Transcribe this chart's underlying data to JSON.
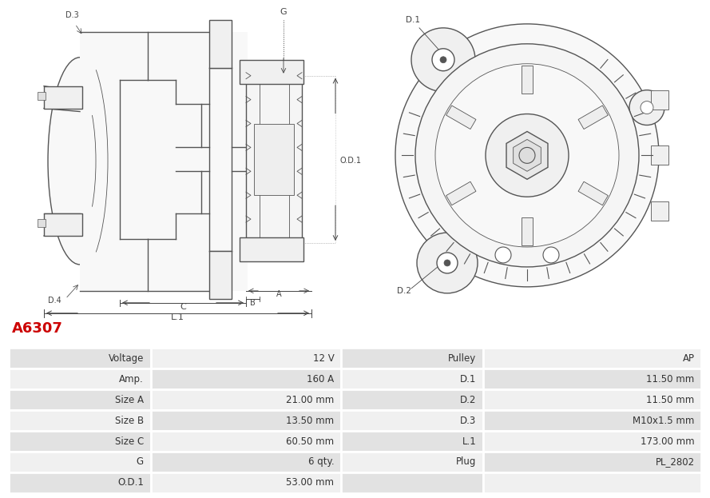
{
  "title": "A6307",
  "title_color": "#cc0000",
  "bg_color": "#ffffff",
  "table_row_bg1": "#e2e2e2",
  "table_row_bg2": "#f0f0f0",
  "table_border_color": "#ffffff",
  "rows": [
    [
      "Voltage",
      "12 V",
      "Pulley",
      "AP"
    ],
    [
      "Amp.",
      "160 A",
      "D.1",
      "11.50 mm"
    ],
    [
      "Size A",
      "21.00 mm",
      "D.2",
      "11.50 mm"
    ],
    [
      "Size B",
      "13.50 mm",
      "D.3",
      "M10x1.5 mm"
    ],
    [
      "Size C",
      "60.50 mm",
      "L.1",
      "173.00 mm"
    ],
    [
      "G",
      "6 qty.",
      "Plug",
      "PL_2802"
    ],
    [
      "O.D.1",
      "53.00 mm",
      "",
      ""
    ]
  ],
  "font_size_table": 8.5
}
